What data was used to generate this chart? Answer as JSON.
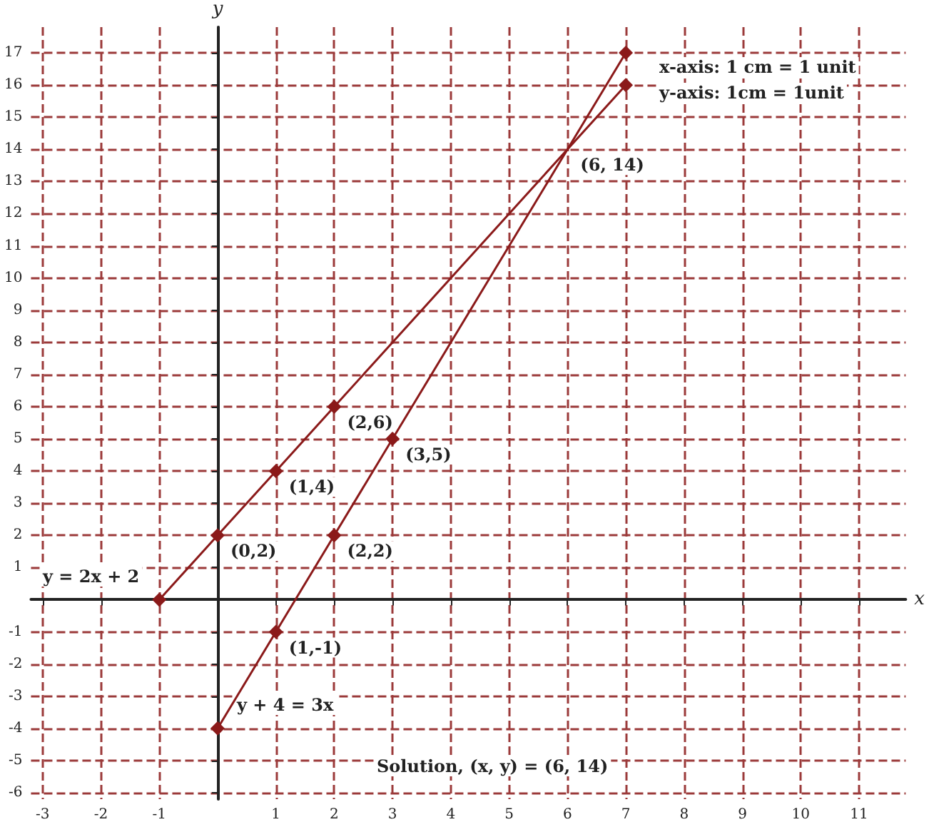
{
  "chart_data": {
    "type": "line",
    "xlabel": "x",
    "ylabel": "y",
    "xlim": [
      -3.2,
      11.8
    ],
    "ylim": [
      -6.2,
      17.8
    ],
    "xticks": [
      -3,
      -2,
      -1,
      1,
      2,
      3,
      4,
      5,
      6,
      7,
      8,
      9,
      10,
      11
    ],
    "yticks": [
      -6,
      -5,
      -4,
      -3,
      -2,
      -1,
      1,
      2,
      3,
      4,
      5,
      6,
      7,
      8,
      9,
      10,
      11,
      12,
      13,
      14,
      15,
      16,
      17
    ],
    "grid": true,
    "marker": "diamond",
    "line_style": "solid",
    "series": [
      {
        "color": "#8b1a1a",
        "x": [
          -1,
          0,
          1,
          2,
          7
        ],
        "values": [
          0,
          2,
          4,
          6,
          16
        ]
      },
      {
        "color": "#8b1a1a",
        "x": [
          0,
          1,
          2,
          3,
          7
        ],
        "values": [
          -4,
          -1,
          2,
          5,
          17
        ]
      }
    ],
    "annotations": [
      {
        "text": "(0,2)",
        "x": 0,
        "y": 2
      },
      {
        "text": "(1,4)",
        "x": 1,
        "y": 4
      },
      {
        "text": "(2,6)",
        "x": 2,
        "y": 6
      },
      {
        "text": "(1,-1)",
        "x": 1,
        "y": -1
      },
      {
        "text": "(2,2)",
        "x": 2,
        "y": 2
      },
      {
        "text": "(3,5)",
        "x": 3,
        "y": 5
      },
      {
        "text": "(6, 14)",
        "x": 6,
        "y": 14
      },
      "y = 2x + 2",
      "y + 4 = 3x",
      "x-axis: 1 cm = 1 unit",
      "y-axis: 1cm = 1unit",
      "Solution, (x, y) = (6, 14)"
    ]
  }
}
